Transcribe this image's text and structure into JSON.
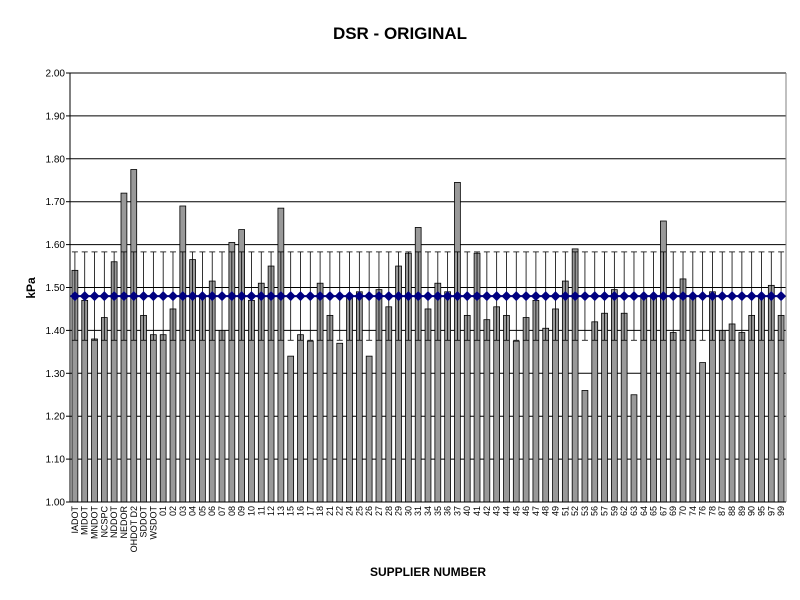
{
  "chart_data": {
    "type": "bar",
    "title": "DSR - ORIGINAL",
    "y_label": "kPa",
    "x_label": "SUPPLIER NUMBER",
    "categories": [
      "IADOT",
      "MIDOT",
      "MNDOT",
      "NCSPC",
      "NDDOT",
      "NEDOR",
      "OHDOT D2",
      "SDDOT",
      "WSDOT",
      "01",
      "02",
      "03",
      "04",
      "05",
      "06",
      "07",
      "08",
      "09",
      "10",
      "11",
      "12",
      "13",
      "15",
      "16",
      "17",
      "18",
      "21",
      "22",
      "24",
      "25",
      "26",
      "27",
      "28",
      "29",
      "30",
      "31",
      "34",
      "35",
      "36",
      "37",
      "40",
      "41",
      "42",
      "43",
      "44",
      "45",
      "46",
      "47",
      "48",
      "49",
      "51",
      "52",
      "53",
      "56",
      "57",
      "59",
      "62",
      "63",
      "64",
      "65",
      "67",
      "69",
      "70",
      "74",
      "76",
      "78",
      "87",
      "88",
      "89",
      "90",
      "95",
      "97",
      "99"
    ],
    "values": [
      1.54,
      1.47,
      1.38,
      1.43,
      1.56,
      1.72,
      1.775,
      1.435,
      1.39,
      1.39,
      1.45,
      1.69,
      1.565,
      1.48,
      1.515,
      1.4,
      1.605,
      1.635,
      1.47,
      1.51,
      1.55,
      1.685,
      1.34,
      1.39,
      1.375,
      1.51,
      1.435,
      1.37,
      1.48,
      1.49,
      1.34,
      1.495,
      1.455,
      1.55,
      1.58,
      1.64,
      1.45,
      1.51,
      1.49,
      1.745,
      1.435,
      1.58,
      1.425,
      1.455,
      1.435,
      1.375,
      1.43,
      1.47,
      1.405,
      1.45,
      1.515,
      1.59,
      1.26,
      1.42,
      1.44,
      1.495,
      1.44,
      1.25,
      1.48,
      1.48,
      1.655,
      1.395,
      1.52,
      1.48,
      1.325,
      1.49,
      1.4,
      1.415,
      1.395,
      1.435,
      1.48,
      1.505,
      1.435
    ],
    "color": "#999999",
    "mean_line": {
      "value": 1.48,
      "error": 0.103,
      "color": "#000080"
    },
    "ylim": [
      1.0,
      2.0
    ],
    "yticks": [
      {
        "value": 1.0,
        "label": "1.00"
      },
      {
        "value": 1.1,
        "label": "1.10"
      },
      {
        "value": 1.2,
        "label": "1.20"
      },
      {
        "value": 1.3,
        "label": "1.30"
      },
      {
        "value": 1.4,
        "label": "1.40"
      },
      {
        "value": 1.5,
        "label": "1.50"
      },
      {
        "value": 1.6,
        "label": "1.60"
      },
      {
        "value": 1.7,
        "label": "1.70"
      },
      {
        "value": 1.8,
        "label": "1.80"
      },
      {
        "value": 1.9,
        "label": "1.90"
      },
      {
        "value": 2.0,
        "label": "2.00"
      }
    ],
    "grid": true
  }
}
